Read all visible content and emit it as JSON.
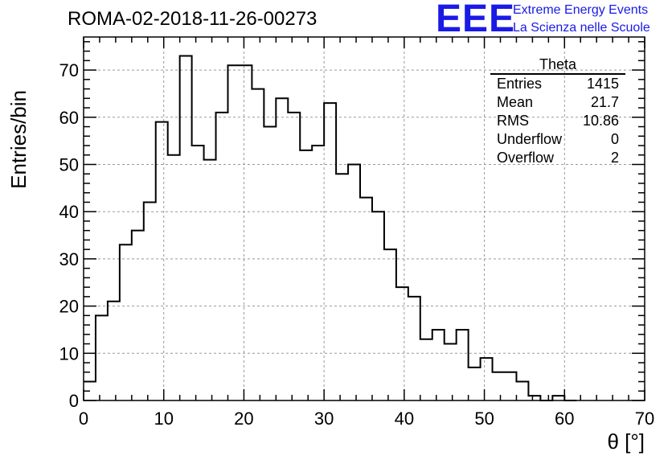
{
  "chart_data": {
    "type": "histogram",
    "title": "ROMA-02-2018-11-26-00273",
    "xlabel": "θ [°]",
    "ylabel": "Entries/bin",
    "xlim": [
      0,
      70
    ],
    "ylim": [
      0,
      77
    ],
    "bin_width": 1.5,
    "x_ticks": [
      0,
      10,
      20,
      30,
      40,
      50,
      60,
      70
    ],
    "y_ticks": [
      0,
      10,
      20,
      30,
      40,
      50,
      60,
      70
    ],
    "grid": true,
    "bin_edges_start": 0,
    "counts": [
      4,
      18,
      21,
      33,
      36,
      42,
      59,
      52,
      73,
      54,
      51,
      61,
      71,
      71,
      66,
      58,
      64,
      61,
      53,
      54,
      63,
      48,
      50,
      43,
      40,
      32,
      24,
      22,
      13,
      15,
      12,
      15,
      7,
      9,
      6,
      6,
      4,
      1,
      0,
      1,
      0
    ]
  },
  "stats_box": {
    "title": "Theta",
    "rows": [
      {
        "label": "Entries",
        "value": "1415"
      },
      {
        "label": "Mean",
        "value": "21.7"
      },
      {
        "label": "RMS",
        "value": "10.86"
      },
      {
        "label": "Underflow",
        "value": "0"
      },
      {
        "label": "Overflow",
        "value": "2"
      }
    ]
  },
  "logo": {
    "mark": "EEE",
    "line1": "Extreme Energy Events",
    "line2": "La Scienza nelle Scuole",
    "color": "#1a1ae6"
  }
}
